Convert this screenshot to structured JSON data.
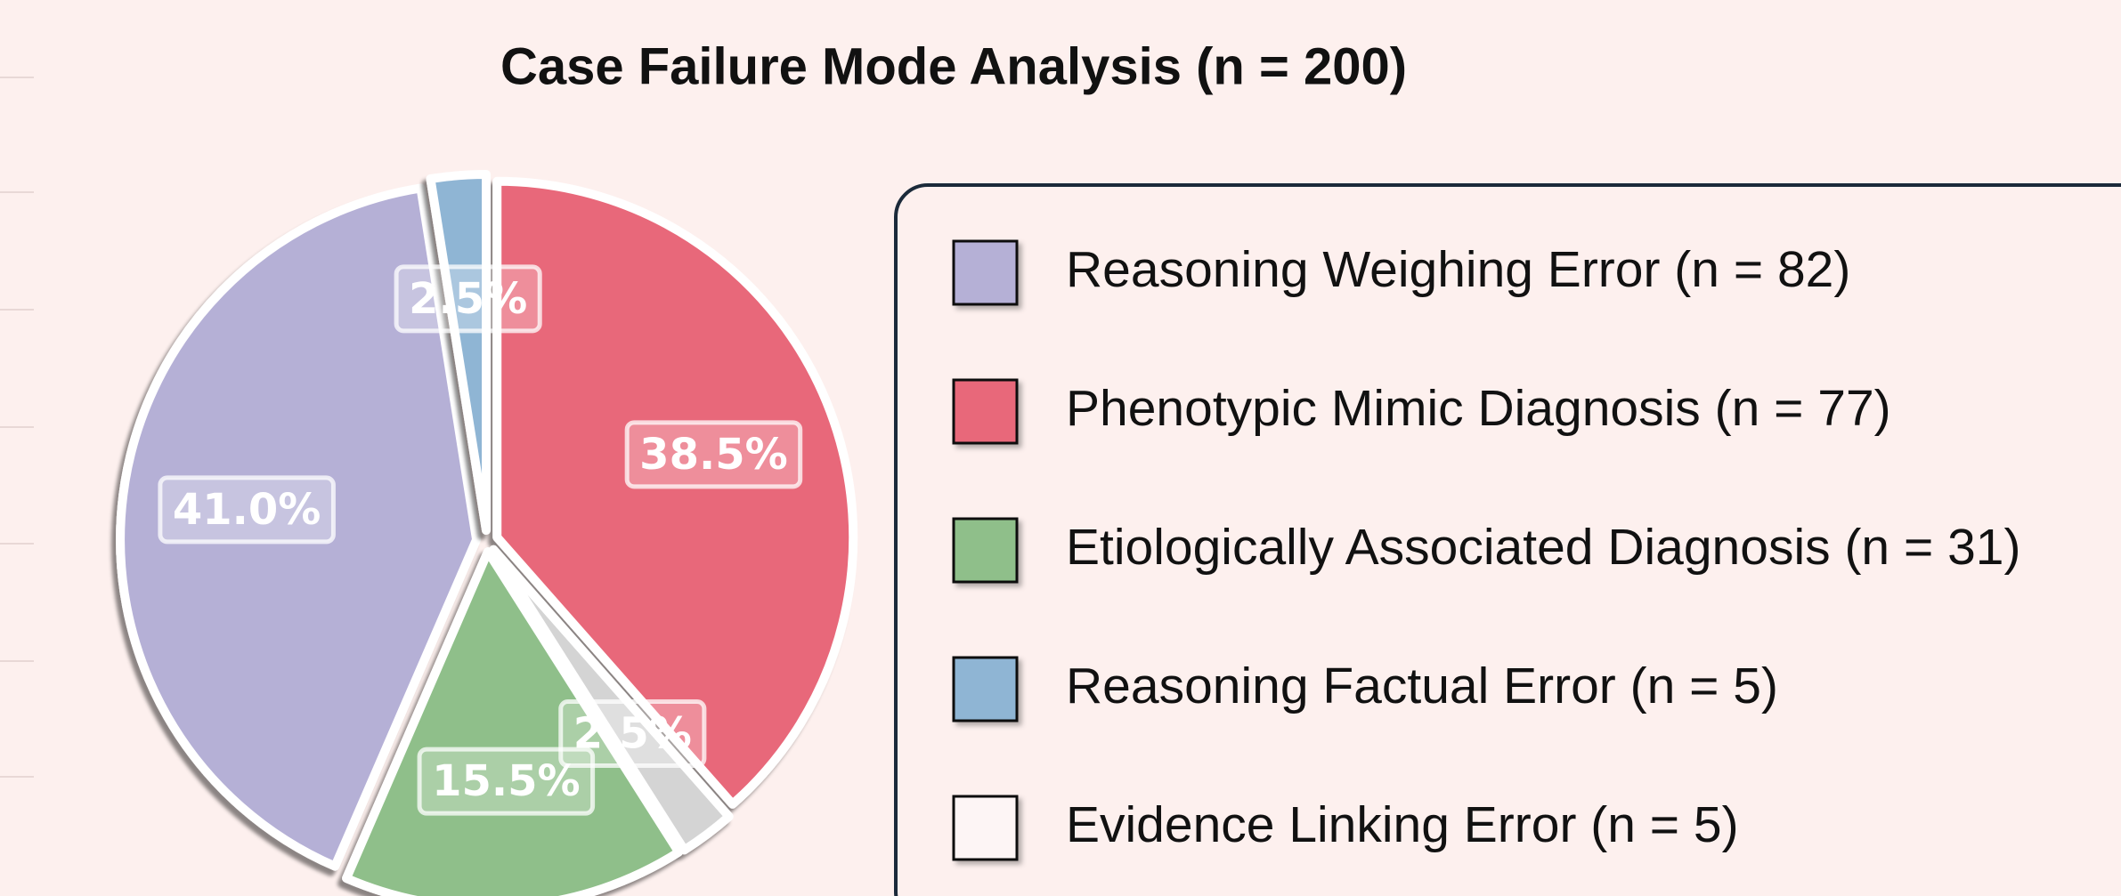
{
  "chart_data": {
    "type": "pie",
    "title": "Case Failure Mode Analysis (n = 200)",
    "values": [
      38.5,
      2.5,
      15.5,
      41.0,
      2.5
    ],
    "value_labels": [
      "38.5%",
      "2.5%",
      "15.5%",
      "41.0%",
      "2.5%"
    ],
    "colors": [
      "#e8687a",
      "#d4d4d4",
      "#8fbf8a",
      "#b5b0d6",
      "#8fb5d4"
    ],
    "legend": {
      "items": [
        {
          "label": "Reasoning Weighing Error (n = 82)",
          "color": "#b5b0d6"
        },
        {
          "label": "Phenotypic Mimic Diagnosis (n = 77)",
          "color": "#e8687a"
        },
        {
          "label": "Etiologically Associated Diagnosis (n = 31)",
          "color": "#8fbf8a"
        },
        {
          "label": "Reasoning Factual Error (n = 5)",
          "color": "#8fb5d4"
        },
        {
          "label": "Evidence Linking Error (n = 5)",
          "color": "#fdf5f5"
        }
      ]
    }
  }
}
